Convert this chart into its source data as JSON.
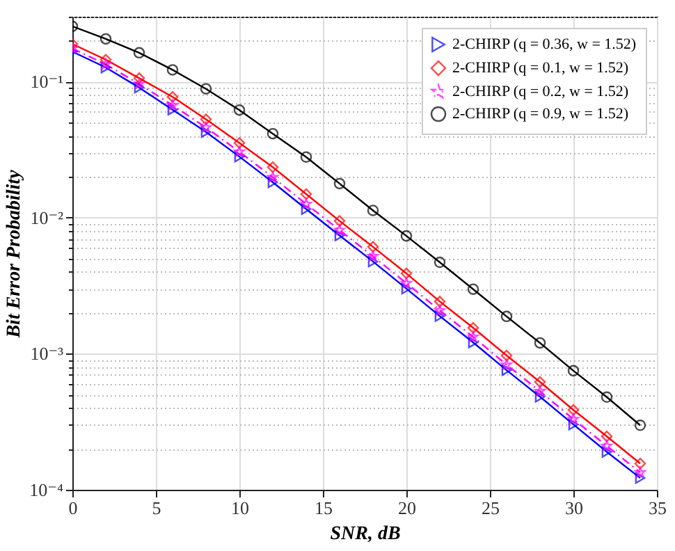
{
  "chart_data": {
    "type": "line",
    "xlabel": "SNR, dB",
    "ylabel": "Bit Error Probability",
    "log": "y",
    "grid": true,
    "legend": "top right",
    "x": [
      0,
      2,
      4,
      6,
      8,
      10,
      12,
      14,
      16,
      18,
      20,
      22,
      24,
      26,
      28,
      30,
      32,
      34
    ],
    "xlim": [
      0,
      35
    ],
    "xticks": [
      0,
      5,
      10,
      15,
      20,
      25,
      30,
      35
    ],
    "ylim": [
      0.0001,
      0.3
    ],
    "yticks": [
      {
        "value": 0.0001,
        "label": "10⁻⁴"
      },
      {
        "value": 0.0002,
        "label": null
      },
      {
        "value": 0.0003,
        "label": null
      },
      {
        "value": 0.0004,
        "label": null
      },
      {
        "value": 0.0005,
        "label": null
      },
      {
        "value": 0.0006,
        "label": null
      },
      {
        "value": 0.0007,
        "label": null
      },
      {
        "value": 0.0008,
        "label": null
      },
      {
        "value": 0.0009,
        "label": null
      },
      {
        "value": 0.001,
        "label": "10⁻³"
      },
      {
        "value": 0.002,
        "label": null
      },
      {
        "value": 0.003,
        "label": null
      },
      {
        "value": 0.004,
        "label": null
      },
      {
        "value": 0.005,
        "label": null
      },
      {
        "value": 0.006,
        "label": null
      },
      {
        "value": 0.007,
        "label": null
      },
      {
        "value": 0.008,
        "label": null
      },
      {
        "value": 0.009,
        "label": null
      },
      {
        "value": 0.01,
        "label": "10⁻²"
      },
      {
        "value": 0.02,
        "label": null
      },
      {
        "value": 0.03,
        "label": null
      },
      {
        "value": 0.04,
        "label": null
      },
      {
        "value": 0.05,
        "label": null
      },
      {
        "value": 0.06,
        "label": null
      },
      {
        "value": 0.07,
        "label": null
      },
      {
        "value": 0.08,
        "label": null
      },
      {
        "value": 0.09,
        "label": null
      },
      {
        "value": 0.1,
        "label": "10⁻¹"
      },
      {
        "value": 0.2,
        "label": null
      },
      {
        "value": 0.3,
        "label": null
      }
    ],
    "series": [
      {
        "name": "2-CHIRP (q = 0.36, w = 1.52)",
        "color": "#0000ff",
        "marker": "triangle",
        "line_style": "solid",
        "values": [
          0.166,
          0.127,
          0.0904,
          0.0622,
          0.0426,
          0.0281,
          0.0182,
          0.01156,
          0.0074,
          0.00476,
          0.00301,
          0.00189,
          0.00121,
          0.000757,
          0.000483,
          0.000302,
          0.00019,
          0.000122
        ]
      },
      {
        "name": "2-CHIRP (q = 0.1, w = 1.52)",
        "color": "#ff0000",
        "marker": "diamond",
        "line_style": "solid",
        "values": [
          0.189,
          0.145,
          0.106,
          0.0773,
          0.0528,
          0.0354,
          0.0235,
          0.0149,
          0.00946,
          0.0061,
          0.00389,
          0.00242,
          0.00155,
          0.00097,
          0.00062,
          0.000386,
          0.000247,
          0.000156
        ]
      },
      {
        "name": "2-CHIRP (q = 0.2, w = 1.52)",
        "color": "#ff00ff",
        "marker": "star",
        "line_style": "dashed",
        "values": [
          0.175,
          0.134,
          0.096,
          0.067,
          0.046,
          0.0305,
          0.0198,
          0.0126,
          0.0081,
          0.0052,
          0.0033,
          0.00208,
          0.00133,
          0.00083,
          0.00053,
          0.00033,
          0.00021,
          0.000134
        ]
      },
      {
        "name": "2-CHIRP (q = 0.9, w = 1.52)",
        "color": "#000000",
        "marker": "circle",
        "line_style": "solid",
        "values": [
          0.255,
          0.206,
          0.163,
          0.122,
          0.0885,
          0.0618,
          0.0414,
          0.0279,
          0.0178,
          0.0113,
          0.00734,
          0.0047,
          0.00298,
          0.00188,
          0.0012,
          0.00075,
          0.00048,
          0.000298
        ]
      }
    ]
  }
}
